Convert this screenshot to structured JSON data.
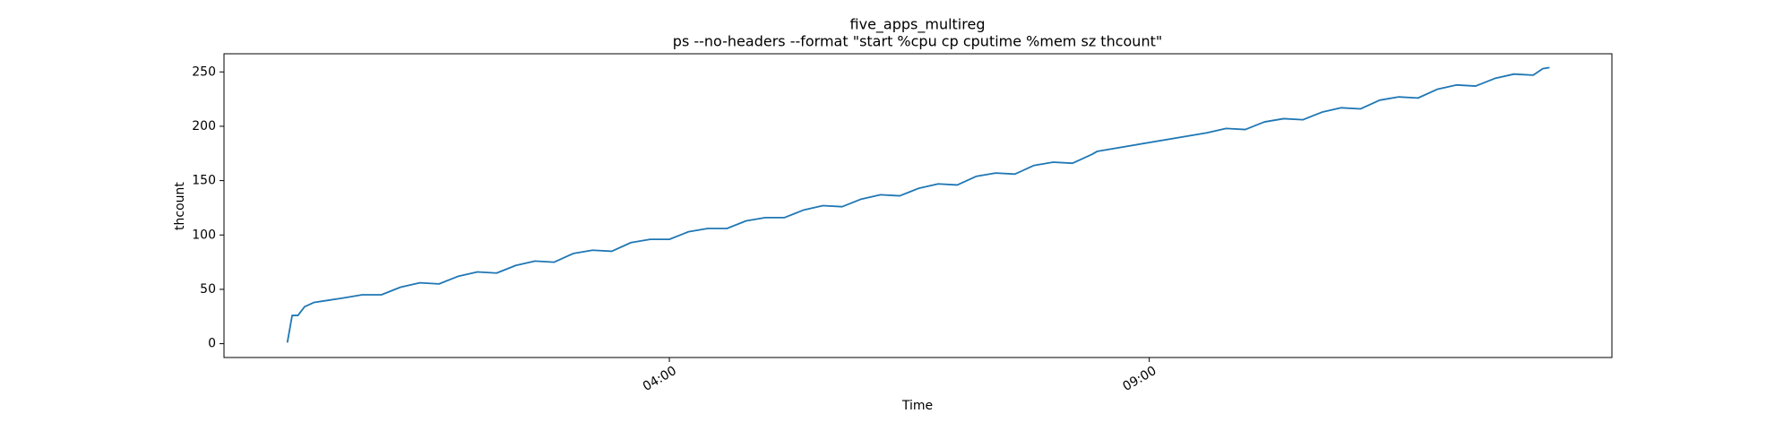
{
  "chart_data": {
    "type": "line",
    "title": "five_apps_multireg",
    "subtitle": "ps --no-headers --format \"start %cpu cp cputime %mem sz thcount\"",
    "xlabel": "Time",
    "ylabel": "thcount",
    "x": [
      0.02,
      0.07,
      0.13,
      0.2,
      0.3,
      0.45,
      0.6,
      0.8,
      1.0,
      1.2,
      1.4,
      1.6,
      1.8,
      2.0,
      2.2,
      2.4,
      2.6,
      2.8,
      3.0,
      3.2,
      3.4,
      3.6,
      3.8,
      4.0,
      4.2,
      4.4,
      4.6,
      4.8,
      5.0,
      5.2,
      5.4,
      5.6,
      5.8,
      6.0,
      6.2,
      6.4,
      6.6,
      6.8,
      7.0,
      7.2,
      7.4,
      7.6,
      7.8,
      8.0,
      8.2,
      8.4,
      8.46,
      9.6,
      9.8,
      10.0,
      10.2,
      10.4,
      10.6,
      10.8,
      11.0,
      11.2,
      11.4,
      11.6,
      11.8,
      12.0,
      12.2,
      12.4,
      12.6,
      12.8,
      13.0,
      13.1,
      13.17
    ],
    "series": [
      {
        "color": "#1f77b4",
        "values": [
          1,
          26,
          26,
          34,
          38,
          40,
          42,
          45,
          45,
          52,
          56,
          55,
          62,
          66,
          65,
          72,
          76,
          75,
          83,
          86,
          85,
          93,
          96,
          96,
          103,
          106,
          106,
          113,
          116,
          116,
          123,
          127,
          126,
          133,
          137,
          136,
          143,
          147,
          146,
          154,
          157,
          156,
          164,
          167,
          166,
          174,
          177,
          194,
          198,
          197,
          204,
          207,
          206,
          213,
          217,
          216,
          224,
          227,
          226,
          234,
          238,
          237,
          244,
          248,
          247,
          253,
          254
        ]
      }
    ],
    "xlim": [
      -0.64,
      13.82
    ],
    "xticks": [
      {
        "value": 4,
        "label": "04:00"
      },
      {
        "value": 9,
        "label": "09:00"
      }
    ],
    "ylim": [
      -12.7,
      266.7
    ],
    "yticks": [
      0,
      50,
      100,
      150,
      200,
      250
    ]
  }
}
